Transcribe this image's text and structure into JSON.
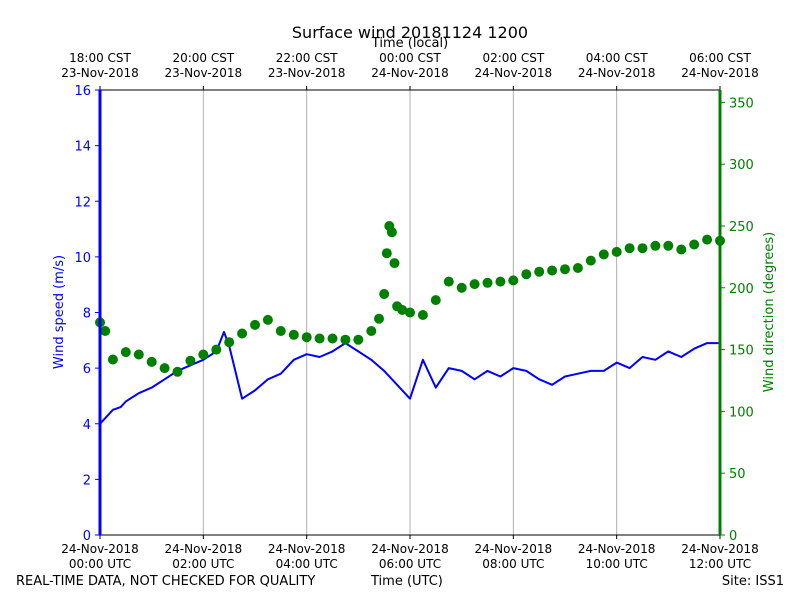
{
  "chart_data": {
    "type": "line",
    "title": "Surface wind 20181124 1200",
    "top_axis_label": "Time (local)",
    "xlabel": "Time (UTC)",
    "ylabel_left": "Wind speed (m/s)",
    "ylabel_right": "Wind direction (degrees)",
    "xlim": [
      0,
      12
    ],
    "ylim_left": [
      0,
      16
    ],
    "ylim_right": [
      0,
      360
    ],
    "grid": "vertical",
    "left_ticks": [
      "0",
      "2",
      "4",
      "6",
      "8",
      "10",
      "12",
      "14",
      "16"
    ],
    "right_ticks": [
      "0",
      "50",
      "100",
      "150",
      "200",
      "250",
      "300",
      "350"
    ],
    "bottom_ticks": [
      {
        "line1": "24-Nov-2018",
        "line2": "00:00 UTC"
      },
      {
        "line1": "24-Nov-2018",
        "line2": "02:00 UTC"
      },
      {
        "line1": "24-Nov-2018",
        "line2": "04:00 UTC"
      },
      {
        "line1": "24-Nov-2018",
        "line2": "06:00 UTC"
      },
      {
        "line1": "24-Nov-2018",
        "line2": "08:00 UTC"
      },
      {
        "line1": "24-Nov-2018",
        "line2": "10:00 UTC"
      },
      {
        "line1": "24-Nov-2018",
        "line2": "12:00 UTC"
      }
    ],
    "top_ticks": [
      {
        "line1": "18:00 CST",
        "line2": "23-Nov-2018"
      },
      {
        "line1": "20:00 CST",
        "line2": "23-Nov-2018"
      },
      {
        "line1": "22:00 CST",
        "line2": "23-Nov-2018"
      },
      {
        "line1": "00:00 CST",
        "line2": "24-Nov-2018"
      },
      {
        "line1": "02:00 CST",
        "line2": "24-Nov-2018"
      },
      {
        "line1": "04:00 CST",
        "line2": "24-Nov-2018"
      },
      {
        "line1": "06:00 CST",
        "line2": "24-Nov-2018"
      }
    ],
    "series": [
      {
        "color": "#0000ff",
        "style": "line",
        "axis": "left",
        "x": [
          0.0,
          0.1,
          0.25,
          0.4,
          0.5,
          0.75,
          1.0,
          1.25,
          1.5,
          1.75,
          2.0,
          2.25,
          2.4,
          2.5,
          2.75,
          3.0,
          3.25,
          3.5,
          3.75,
          4.0,
          4.25,
          4.5,
          4.75,
          5.0,
          5.25,
          5.5,
          5.75,
          6.0,
          6.25,
          6.5,
          6.75,
          7.0,
          7.25,
          7.5,
          7.75,
          8.0,
          8.25,
          8.5,
          8.75,
          9.0,
          9.25,
          9.5,
          9.75,
          10.0,
          10.25,
          10.5,
          10.75,
          11.0,
          11.25,
          11.5,
          11.75,
          12.0
        ],
        "y": [
          4.0,
          4.2,
          4.5,
          4.6,
          4.8,
          5.1,
          5.3,
          5.6,
          5.9,
          6.1,
          6.3,
          6.6,
          7.3,
          6.8,
          4.9,
          5.2,
          5.6,
          5.8,
          6.3,
          6.5,
          6.4,
          6.6,
          6.9,
          6.6,
          6.3,
          5.9,
          5.4,
          4.9,
          6.3,
          5.3,
          6.0,
          5.9,
          5.6,
          5.9,
          5.7,
          6.0,
          5.9,
          5.6,
          5.4,
          5.7,
          5.8,
          5.9,
          5.9,
          6.2,
          6.0,
          6.4,
          6.3,
          6.6,
          6.4,
          6.7,
          6.9,
          6.9
        ]
      },
      {
        "color": "#008000",
        "style": "markers",
        "axis": "right",
        "x": [
          0.0,
          0.1,
          0.25,
          0.5,
          0.75,
          1.0,
          1.25,
          1.5,
          1.75,
          2.0,
          2.25,
          2.5,
          2.75,
          3.0,
          3.25,
          3.5,
          3.75,
          4.0,
          4.25,
          4.5,
          4.75,
          5.0,
          5.25,
          5.4,
          5.5,
          5.55,
          5.6,
          5.65,
          5.7,
          5.75,
          5.85,
          6.0,
          6.25,
          6.5,
          6.75,
          7.0,
          7.25,
          7.5,
          7.75,
          8.0,
          8.25,
          8.5,
          8.75,
          9.0,
          9.25,
          9.5,
          9.75,
          10.0,
          10.25,
          10.5,
          10.75,
          11.0,
          11.25,
          11.5,
          11.75,
          12.0
        ],
        "y": [
          172,
          165,
          142,
          148,
          146,
          140,
          135,
          132,
          141,
          146,
          150,
          156,
          163,
          170,
          174,
          165,
          162,
          160,
          159,
          159,
          158,
          158,
          165,
          175,
          195,
          228,
          250,
          245,
          220,
          185,
          182,
          180,
          178,
          190,
          205,
          200,
          203,
          204,
          205,
          206,
          211,
          213,
          214,
          215,
          216,
          222,
          227,
          229,
          232,
          232,
          234,
          234,
          231,
          235,
          239,
          238
        ]
      }
    ]
  },
  "footer": {
    "note": "REAL-TIME DATA, NOT CHECKED FOR QUALITY",
    "site": "Site: ISS1"
  }
}
